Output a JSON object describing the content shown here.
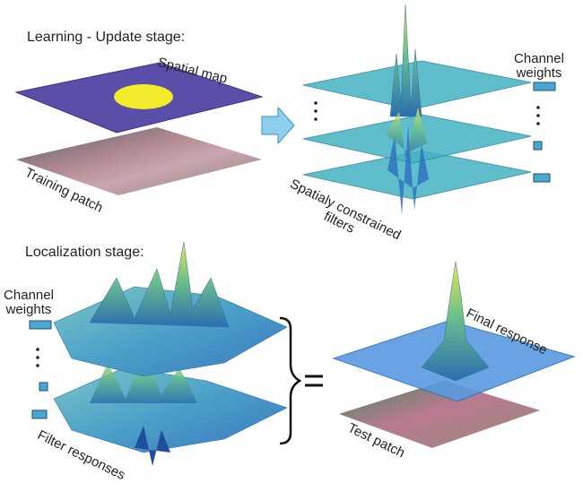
{
  "learning": {
    "title": "Learning - Update stage:",
    "spatial_map": "Spatial map",
    "training_patch": "Training patch",
    "channel_weights": "Channel weights",
    "filters": "Spatialy constrained filters"
  },
  "localization": {
    "title": "Localization stage:",
    "channel_weights": "Channel weights",
    "filter_responses": "Filter responses",
    "final_response": "Final response",
    "test_patch": "Test patch"
  }
}
